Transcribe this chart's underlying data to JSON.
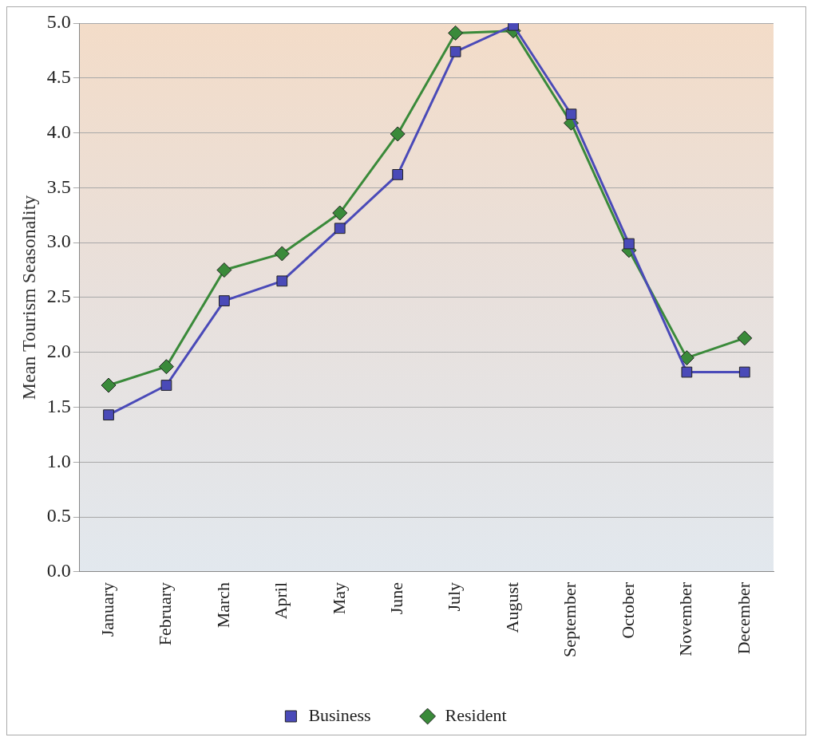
{
  "chart_data": {
    "type": "line",
    "ylabel": "Mean Tourism Seasonality",
    "categories": [
      "January",
      "February",
      "March",
      "April",
      "May",
      "June",
      "July",
      "August",
      "September",
      "October",
      "November",
      "December"
    ],
    "series": [
      {
        "name": "Resident",
        "color": "#3a8a3a",
        "marker": "diamond",
        "values": [
          1.7,
          1.87,
          2.75,
          2.9,
          3.27,
          3.99,
          4.91,
          4.93,
          4.09,
          2.93,
          1.95,
          2.13
        ]
      },
      {
        "name": "Business",
        "color": "#4a4ab8",
        "marker": "square",
        "values": [
          1.43,
          1.7,
          2.47,
          2.65,
          3.13,
          3.62,
          4.74,
          4.98,
          4.17,
          2.99,
          1.82,
          1.82
        ]
      }
    ],
    "ylim": [
      0,
      5
    ],
    "yticks": [
      {
        "value": 0,
        "label": "0.0"
      },
      {
        "value": 0.5,
        "label": "0.5"
      },
      {
        "value": 1,
        "label": "1.0"
      },
      {
        "value": 1.5,
        "label": "1.5"
      },
      {
        "value": 2,
        "label": "2.0"
      },
      {
        "value": 2.5,
        "label": "2.5"
      },
      {
        "value": 3,
        "label": "3.0"
      },
      {
        "value": 3.5,
        "label": "3.5"
      },
      {
        "value": 4,
        "label": "4.0"
      },
      {
        "value": 4.5,
        "label": "4.5"
      },
      {
        "value": 5,
        "label": "5.0"
      }
    ],
    "grid": "y",
    "legend": "bottom",
    "line_style": "solid"
  }
}
